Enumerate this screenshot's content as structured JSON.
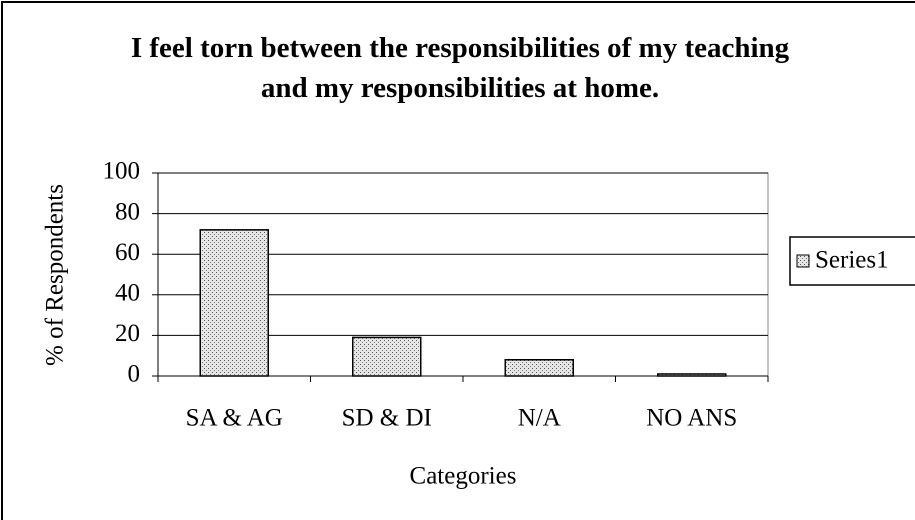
{
  "chart_data": {
    "type": "bar",
    "title": "I feel torn between the responsibilities of my teaching and my responsibilities at home.",
    "x_label": "Categories",
    "y_label": "% of Respondents",
    "categories": [
      "SA & AG",
      "SD & DI",
      "N/A",
      "NO ANS"
    ],
    "series": [
      {
        "name": "Series1",
        "color": "#b8b8b8",
        "values": [
          72,
          19,
          8,
          1
        ]
      }
    ],
    "ylim": [
      0,
      100
    ],
    "yticks": [
      0,
      20,
      40,
      60,
      80,
      100
    ],
    "grid": true,
    "legend": "right"
  }
}
